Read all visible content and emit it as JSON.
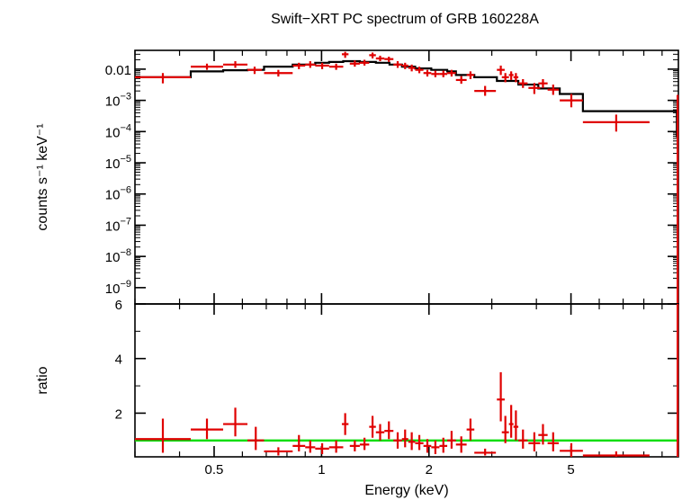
{
  "chart_data": [
    {
      "type": "scatter",
      "title": "Swift−XRT PC spectrum of GRB 160228A",
      "ylabel": "counts s⁻¹ keV⁻¹",
      "xscale": "log",
      "yscale": "log",
      "xlim": [
        0.3,
        10
      ],
      "ylim": [
        3e-10,
        0.04
      ],
      "yticks": [
        {
          "v": 0.01,
          "base": "0.01",
          "exp": ""
        },
        {
          "v": 0.001,
          "base": "10",
          "exp": "−3"
        },
        {
          "v": 0.0001,
          "base": "10",
          "exp": "−4"
        },
        {
          "v": 1e-05,
          "base": "10",
          "exp": "−5"
        },
        {
          "v": 1e-06,
          "base": "10",
          "exp": "−6"
        },
        {
          "v": 1e-07,
          "base": "10",
          "exp": "−7"
        },
        {
          "v": 1e-08,
          "base": "10",
          "exp": "−8"
        },
        {
          "v": 1e-09,
          "base": "10",
          "exp": "−9"
        }
      ],
      "series": [
        {
          "color": "#e00000",
          "points": [
            {
              "x0": 0.3,
              "x1": 0.43,
              "y": 0.0055,
              "ylo": 0.0035,
              "yhi": 0.0075
            },
            {
              "x0": 0.43,
              "x1": 0.53,
              "y": 0.012,
              "ylo": 0.0095,
              "yhi": 0.015
            },
            {
              "x0": 0.53,
              "x1": 0.62,
              "y": 0.014,
              "ylo": 0.011,
              "yhi": 0.018
            },
            {
              "x0": 0.62,
              "x1": 0.68,
              "y": 0.0095,
              "ylo": 0.007,
              "yhi": 0.012
            },
            {
              "x0": 0.69,
              "x1": 0.83,
              "y": 0.0075,
              "ylo": 0.0058,
              "yhi": 0.0095
            },
            {
              "x0": 0.83,
              "x1": 0.9,
              "y": 0.013,
              "ylo": 0.01,
              "yhi": 0.016
            },
            {
              "x0": 0.9,
              "x1": 0.96,
              "y": 0.014,
              "ylo": 0.011,
              "yhi": 0.018
            },
            {
              "x0": 0.96,
              "x1": 1.05,
              "y": 0.013,
              "ylo": 0.01,
              "yhi": 0.016
            },
            {
              "x0": 1.05,
              "x1": 1.15,
              "y": 0.012,
              "ylo": 0.0095,
              "yhi": 0.015
            },
            {
              "x0": 1.14,
              "x1": 1.19,
              "y": 0.03,
              "ylo": 0.023,
              "yhi": 0.036
            },
            {
              "x0": 1.2,
              "x1": 1.28,
              "y": 0.015,
              "ylo": 0.012,
              "yhi": 0.019
            },
            {
              "x0": 1.28,
              "x1": 1.36,
              "y": 0.016,
              "ylo": 0.013,
              "yhi": 0.02
            },
            {
              "x0": 1.36,
              "x1": 1.42,
              "y": 0.028,
              "ylo": 0.022,
              "yhi": 0.034
            },
            {
              "x0": 1.42,
              "x1": 1.5,
              "y": 0.022,
              "ylo": 0.018,
              "yhi": 0.027
            },
            {
              "x0": 1.5,
              "x1": 1.59,
              "y": 0.021,
              "ylo": 0.017,
              "yhi": 0.025
            },
            {
              "x0": 1.59,
              "x1": 1.68,
              "y": 0.014,
              "ylo": 0.011,
              "yhi": 0.018
            },
            {
              "x0": 1.68,
              "x1": 1.75,
              "y": 0.013,
              "ylo": 0.01,
              "yhi": 0.016
            },
            {
              "x0": 1.75,
              "x1": 1.83,
              "y": 0.011,
              "ylo": 0.0085,
              "yhi": 0.014
            },
            {
              "x0": 1.83,
              "x1": 1.93,
              "y": 0.0095,
              "ylo": 0.0074,
              "yhi": 0.012
            },
            {
              "x0": 1.93,
              "x1": 2.03,
              "y": 0.0075,
              "ylo": 0.0058,
              "yhi": 0.0095
            },
            {
              "x0": 2.03,
              "x1": 2.14,
              "y": 0.007,
              "ylo": 0.0055,
              "yhi": 0.009
            },
            {
              "x0": 2.14,
              "x1": 2.25,
              "y": 0.007,
              "ylo": 0.0055,
              "yhi": 0.009
            },
            {
              "x0": 2.25,
              "x1": 2.38,
              "y": 0.0075,
              "ylo": 0.0058,
              "yhi": 0.0095
            },
            {
              "x0": 2.38,
              "x1": 2.55,
              "y": 0.0045,
              "ylo": 0.0034,
              "yhi": 0.006
            },
            {
              "x0": 2.55,
              "x1": 2.68,
              "y": 0.0065,
              "ylo": 0.0048,
              "yhi": 0.0085
            },
            {
              "x0": 2.68,
              "x1": 3.08,
              "y": 0.002,
              "ylo": 0.0014,
              "yhi": 0.0029
            },
            {
              "x0": 3.1,
              "x1": 3.26,
              "y": 0.0095,
              "ylo": 0.0065,
              "yhi": 0.013
            },
            {
              "x0": 3.2,
              "x1": 3.35,
              "y": 0.0055,
              "ylo": 0.0038,
              "yhi": 0.0075
            },
            {
              "x0": 3.35,
              "x1": 3.45,
              "y": 0.0065,
              "ylo": 0.0045,
              "yhi": 0.0085
            },
            {
              "x0": 3.45,
              "x1": 3.56,
              "y": 0.0055,
              "ylo": 0.0038,
              "yhi": 0.0075
            },
            {
              "x0": 3.56,
              "x1": 3.78,
              "y": 0.0035,
              "ylo": 0.0025,
              "yhi": 0.0048
            },
            {
              "x0": 3.8,
              "x1": 4.1,
              "y": 0.0025,
              "ylo": 0.0016,
              "yhi": 0.0036
            },
            {
              "x0": 4.05,
              "x1": 4.3,
              "y": 0.0035,
              "ylo": 0.0025,
              "yhi": 0.0048
            },
            {
              "x0": 4.3,
              "x1": 4.62,
              "y": 0.0022,
              "ylo": 0.0015,
              "yhi": 0.0032
            },
            {
              "x0": 4.65,
              "x1": 5.4,
              "y": 0.001,
              "ylo": 0.0006,
              "yhi": 0.0016
            },
            {
              "x0": 5.4,
              "x1": 8.3,
              "y": 0.0002,
              "ylo": 0.0001,
              "yhi": 0.00035
            },
            {
              "x0": 9.9,
              "x1": 10,
              "y": 0.0003,
              "ylo": 3e-10,
              "yhi": 0.0015
            }
          ]
        },
        {
          "type": "step",
          "color": "#000000",
          "points": [
            {
              "x0": 0.3,
              "x1": 0.43,
              "y": 0.0055
            },
            {
              "x0": 0.43,
              "x1": 0.53,
              "y": 0.0085
            },
            {
              "x0": 0.53,
              "x1": 0.62,
              "y": 0.0092
            },
            {
              "x0": 0.62,
              "x1": 0.69,
              "y": 0.0095
            },
            {
              "x0": 0.69,
              "x1": 0.83,
              "y": 0.012
            },
            {
              "x0": 0.83,
              "x1": 0.96,
              "y": 0.014
            },
            {
              "x0": 0.96,
              "x1": 1.05,
              "y": 0.016
            },
            {
              "x0": 1.05,
              "x1": 1.15,
              "y": 0.017
            },
            {
              "x0": 1.15,
              "x1": 1.28,
              "y": 0.018
            },
            {
              "x0": 1.28,
              "x1": 1.42,
              "y": 0.017
            },
            {
              "x0": 1.42,
              "x1": 1.55,
              "y": 0.016
            },
            {
              "x0": 1.55,
              "x1": 1.68,
              "y": 0.014
            },
            {
              "x0": 1.68,
              "x1": 1.83,
              "y": 0.012
            },
            {
              "x0": 1.83,
              "x1": 2.03,
              "y": 0.0105
            },
            {
              "x0": 2.03,
              "x1": 2.25,
              "y": 0.0095
            },
            {
              "x0": 2.25,
              "x1": 2.38,
              "y": 0.0085
            },
            {
              "x0": 2.38,
              "x1": 2.68,
              "y": 0.0065
            },
            {
              "x0": 2.68,
              "x1": 3.1,
              "y": 0.0055
            },
            {
              "x0": 3.1,
              "x1": 3.56,
              "y": 0.0042
            },
            {
              "x0": 3.56,
              "x1": 4.05,
              "y": 0.0032
            },
            {
              "x0": 4.05,
              "x1": 4.65,
              "y": 0.0024
            },
            {
              "x0": 4.65,
              "x1": 5.4,
              "y": 0.0016
            },
            {
              "x0": 5.4,
              "x1": 9.9,
              "y": 0.00045
            },
            {
              "x0": 9.9,
              "x1": 10,
              "y": 7e-05
            }
          ]
        }
      ]
    },
    {
      "type": "scatter",
      "xlabel": "Energy (keV)",
      "ylabel": "ratio",
      "xscale": "log",
      "xlim": [
        0.3,
        10
      ],
      "ylim": [
        0.4,
        6
      ],
      "xticks": [
        {
          "v": 0.5,
          "label": "0.5"
        },
        {
          "v": 1,
          "label": "1"
        },
        {
          "v": 2,
          "label": "2"
        },
        {
          "v": 5,
          "label": "5"
        }
      ],
      "yticks": [
        {
          "v": 2,
          "label": "2"
        },
        {
          "v": 4,
          "label": "4"
        },
        {
          "v": 6,
          "label": "6"
        }
      ],
      "reference_line": {
        "y": 1,
        "color": "#00dd00"
      },
      "series": [
        {
          "color": "#e00000",
          "points": [
            {
              "x0": 0.3,
              "x1": 0.43,
              "y": 1.05,
              "ylo": 0.55,
              "yhi": 1.8
            },
            {
              "x0": 0.43,
              "x1": 0.53,
              "y": 1.4,
              "ylo": 1.05,
              "yhi": 1.8
            },
            {
              "x0": 0.53,
              "x1": 0.62,
              "y": 1.6,
              "ylo": 1.15,
              "yhi": 2.2
            },
            {
              "x0": 0.62,
              "x1": 0.69,
              "y": 1.0,
              "ylo": 0.65,
              "yhi": 1.5
            },
            {
              "x0": 0.69,
              "x1": 0.83,
              "y": 0.6,
              "ylo": 0.45,
              "yhi": 0.75
            },
            {
              "x0": 0.83,
              "x1": 0.9,
              "y": 0.8,
              "ylo": 0.6,
              "yhi": 1.2
            },
            {
              "x0": 0.9,
              "x1": 0.96,
              "y": 0.75,
              "ylo": 0.55,
              "yhi": 1.0
            },
            {
              "x0": 0.96,
              "x1": 1.05,
              "y": 0.7,
              "ylo": 0.5,
              "yhi": 0.9
            },
            {
              "x0": 1.05,
              "x1": 1.15,
              "y": 0.75,
              "ylo": 0.55,
              "yhi": 1.0
            },
            {
              "x0": 1.14,
              "x1": 1.19,
              "y": 1.6,
              "ylo": 1.2,
              "yhi": 2.0
            },
            {
              "x0": 1.2,
              "x1": 1.28,
              "y": 0.8,
              "ylo": 0.6,
              "yhi": 1.0
            },
            {
              "x0": 1.28,
              "x1": 1.36,
              "y": 0.85,
              "ylo": 0.65,
              "yhi": 1.1
            },
            {
              "x0": 1.36,
              "x1": 1.42,
              "y": 1.5,
              "ylo": 1.1,
              "yhi": 1.9
            },
            {
              "x0": 1.42,
              "x1": 1.5,
              "y": 1.3,
              "ylo": 1.0,
              "yhi": 1.6
            },
            {
              "x0": 1.5,
              "x1": 1.59,
              "y": 1.35,
              "ylo": 1.05,
              "yhi": 1.7
            },
            {
              "x0": 1.59,
              "x1": 1.68,
              "y": 1.0,
              "ylo": 0.7,
              "yhi": 1.3
            },
            {
              "x0": 1.68,
              "x1": 1.75,
              "y": 1.05,
              "ylo": 0.75,
              "yhi": 1.4
            },
            {
              "x0": 1.75,
              "x1": 1.83,
              "y": 0.95,
              "ylo": 0.65,
              "yhi": 1.3
            },
            {
              "x0": 1.83,
              "x1": 1.93,
              "y": 0.9,
              "ylo": 0.65,
              "yhi": 1.2
            },
            {
              "x0": 1.93,
              "x1": 2.03,
              "y": 0.8,
              "ylo": 0.55,
              "yhi": 1.05
            },
            {
              "x0": 2.03,
              "x1": 2.14,
              "y": 0.75,
              "ylo": 0.5,
              "yhi": 1.0
            },
            {
              "x0": 2.14,
              "x1": 2.25,
              "y": 0.8,
              "ylo": 0.55,
              "yhi": 1.1
            },
            {
              "x0": 2.25,
              "x1": 2.38,
              "y": 1.0,
              "ylo": 0.7,
              "yhi": 1.35
            },
            {
              "x0": 2.38,
              "x1": 2.55,
              "y": 0.85,
              "ylo": 0.55,
              "yhi": 1.15
            },
            {
              "x0": 2.55,
              "x1": 2.68,
              "y": 1.4,
              "ylo": 1.0,
              "yhi": 1.8
            },
            {
              "x0": 2.68,
              "x1": 3.08,
              "y": 0.55,
              "ylo": 0.45,
              "yhi": 0.7
            },
            {
              "x0": 3.1,
              "x1": 3.26,
              "y": 2.5,
              "ylo": 1.7,
              "yhi": 3.5
            },
            {
              "x0": 3.2,
              "x1": 3.35,
              "y": 1.3,
              "ylo": 0.9,
              "yhi": 1.9
            },
            {
              "x0": 3.35,
              "x1": 3.45,
              "y": 1.6,
              "ylo": 1.1,
              "yhi": 2.3
            },
            {
              "x0": 3.45,
              "x1": 3.56,
              "y": 1.5,
              "ylo": 1.0,
              "yhi": 2.1
            },
            {
              "x0": 3.56,
              "x1": 3.78,
              "y": 1.0,
              "ylo": 0.7,
              "yhi": 1.4
            },
            {
              "x0": 3.8,
              "x1": 4.1,
              "y": 0.9,
              "ylo": 0.6,
              "yhi": 1.3
            },
            {
              "x0": 4.05,
              "x1": 4.3,
              "y": 1.2,
              "ylo": 0.85,
              "yhi": 1.6
            },
            {
              "x0": 4.3,
              "x1": 4.62,
              "y": 0.9,
              "ylo": 0.6,
              "yhi": 1.3
            },
            {
              "x0": 4.65,
              "x1": 5.4,
              "y": 0.62,
              "ylo": 0.4,
              "yhi": 0.9
            },
            {
              "x0": 5.4,
              "x1": 8.3,
              "y": 0.45,
              "ylo": 0.35,
              "yhi": 0.6
            },
            {
              "x0": 9.9,
              "x1": 10,
              "y": 5.0,
              "ylo": 0.4,
              "yhi": 6.0
            }
          ]
        }
      ]
    }
  ]
}
